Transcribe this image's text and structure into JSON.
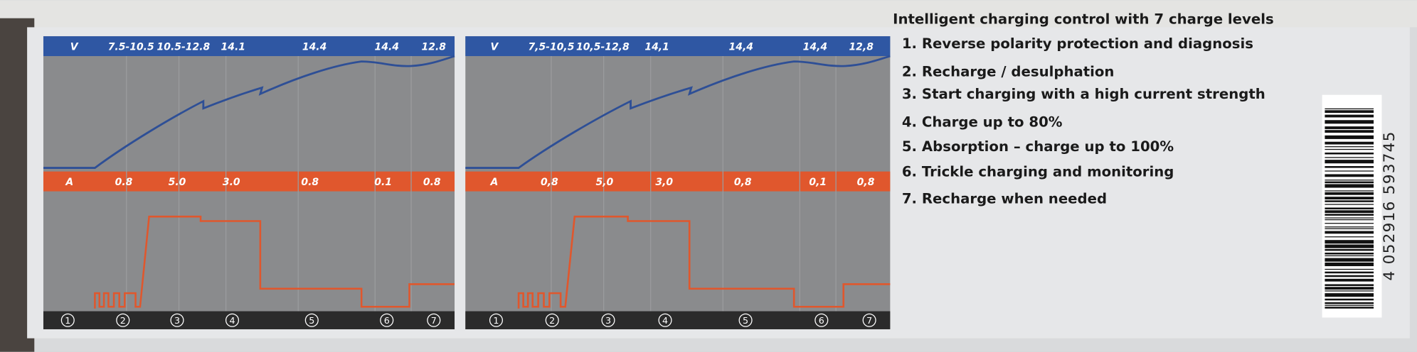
{
  "panels": [
    {
      "voltage_header": "V",
      "voltages": [
        "7.5-10.5",
        "10.5-12.8",
        "14.1",
        "14.4",
        "14.4",
        "12.8"
      ],
      "current_header": "A",
      "currents": [
        "0.8",
        "5.0",
        "3.0",
        "0.8",
        "0.1",
        "0.8"
      ],
      "steps": [
        "1",
        "2",
        "3",
        "4",
        "5",
        "6",
        "7"
      ]
    },
    {
      "voltage_header": "V",
      "voltages": [
        "7,5-10,5",
        "10,5-12,8",
        "14,1",
        "14,4",
        "14,4",
        "12,8"
      ],
      "current_header": "A",
      "currents": [
        "0,8",
        "5,0",
        "3,0",
        "0,8",
        "0,1",
        "0,8"
      ],
      "steps": [
        "1",
        "2",
        "3",
        "4",
        "5",
        "6",
        "7"
      ]
    }
  ],
  "feature_list": {
    "title": "Intelligent charging control with 7 charge levels",
    "items": [
      "1. Reverse polarity protection and diagnosis",
      "2. Recharge / desulphation",
      "3. Start charging with a high current strength",
      "4. Charge up to 80%",
      "5. Absorption – charge up to 100%",
      "6. Trickle charging and monitoring",
      "7. Recharge when needed"
    ]
  },
  "barcode": "4 052916 593745"
}
